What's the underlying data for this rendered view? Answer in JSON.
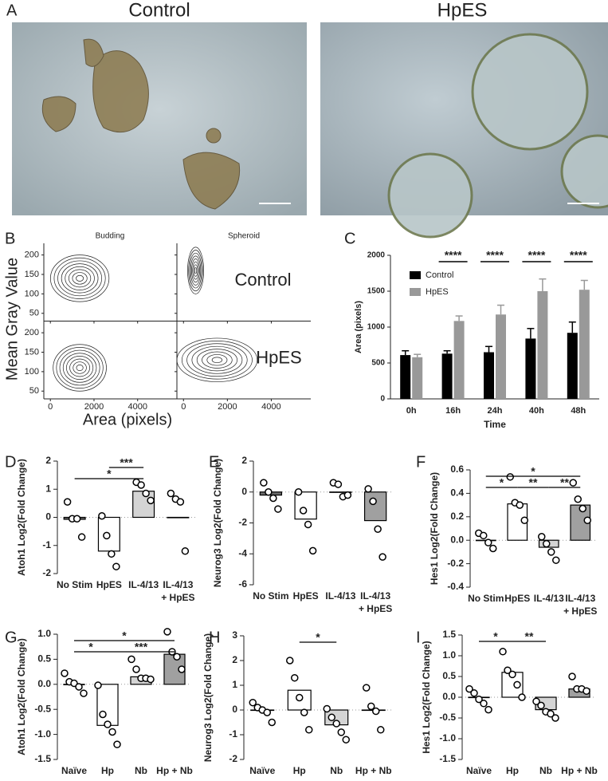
{
  "figure_a": {
    "panel": "A",
    "images": [
      {
        "title": "Control"
      },
      {
        "title": "HpES"
      }
    ]
  },
  "chart_data": [
    {
      "type": "contour",
      "panel": "B",
      "facets": [
        "Budding",
        "Spheroid"
      ],
      "rows": [
        "Control",
        "HpES"
      ],
      "xlabel": "Area (pixels)",
      "ylabel": "Mean Gray Value",
      "xlim": [
        -300,
        5800
      ],
      "xticks": [
        0,
        2000,
        4000
      ],
      "ylim": [
        30,
        230
      ],
      "yticks": [
        50,
        100,
        150,
        200
      ]
    },
    {
      "type": "bar",
      "panel": "C",
      "categories": [
        "0h",
        "16h",
        "24h",
        "40h",
        "48h"
      ],
      "xlabel": "Time",
      "ylabel": "Area (pixels)",
      "ylim": [
        0,
        2000
      ],
      "yticks": [
        0,
        500,
        1000,
        1500,
        2000
      ],
      "series": [
        {
          "name": "Control",
          "color": "#000000",
          "values": [
            610,
            630,
            650,
            840,
            920
          ],
          "errors": [
            60,
            40,
            80,
            140,
            150
          ]
        },
        {
          "name": "HpES",
          "color": "#999999",
          "values": [
            580,
            1085,
            1175,
            1500,
            1520
          ],
          "errors": [
            40,
            70,
            130,
            170,
            130
          ]
        }
      ],
      "significance": [
        null,
        "****",
        "****",
        "****",
        "****"
      ]
    },
    {
      "type": "bar_dot",
      "panel": "D",
      "ylabel": "Atoh1 Log2(Fold Change)",
      "categories": [
        [
          "No Stim"
        ],
        [
          "HpES"
        ],
        [
          "IL-4/13"
        ],
        [
          "IL-4/13",
          "+ HpES"
        ]
      ],
      "colors": [
        "#6b6b6b",
        "#ffffff",
        "#d4d4d4",
        "#a0a0a0"
      ],
      "values": [
        -0.07,
        -1.2,
        0.93,
        0.0
      ],
      "points": [
        [
          0.55,
          -0.05,
          -0.05,
          -0.7
        ],
        [
          0.05,
          -0.65,
          -1.3,
          -1.75
        ],
        [
          1.25,
          1.15,
          0.85,
          0.6
        ],
        [
          0.85,
          0.65,
          0.55,
          -1.2
        ]
      ],
      "ylim": [
        -2,
        2
      ],
      "yticks": [
        -2,
        -1,
        0,
        1,
        2
      ],
      "brackets": [
        {
          "from": 1,
          "to": 2,
          "label": "***"
        },
        {
          "from": 0,
          "to": 2,
          "label": "*"
        }
      ]
    },
    {
      "type": "bar_dot",
      "panel": "E",
      "ylabel": "Neurog3 Log2(Fold Change)",
      "categories": [
        [
          "No Stim"
        ],
        [
          "HpES"
        ],
        [
          "IL-4/13"
        ],
        [
          "IL-4/13",
          "+ HpES"
        ]
      ],
      "colors": [
        "#6b6b6b",
        "#ffffff",
        "#d4d4d4",
        "#a0a0a0"
      ],
      "values": [
        -0.2,
        -1.75,
        -0.02,
        -1.85
      ],
      "points": [
        [
          0.6,
          0,
          -0.4,
          -1.1
        ],
        [
          0,
          -1.2,
          -2.1,
          -3.8
        ],
        [
          0.6,
          0.5,
          -0.3,
          -0.2
        ],
        [
          0.2,
          -0.6,
          -2.4,
          -4.2
        ]
      ],
      "ylim": [
        -6,
        2
      ],
      "yticks": [
        -6,
        -4,
        -2,
        0,
        2
      ],
      "brackets": []
    },
    {
      "type": "bar_dot",
      "panel": "F",
      "ylabel": "Hes1 Log2(Fold Change)",
      "categories": [
        [
          "No Stim"
        ],
        [
          "HpES"
        ],
        [
          "IL-4/13"
        ],
        [
          "IL-4/13",
          "+ HpES"
        ]
      ],
      "colors": [
        "#6b6b6b",
        "#ffffff",
        "#d4d4d4",
        "#a0a0a0"
      ],
      "values": [
        0.0,
        0.31,
        -0.06,
        0.3
      ],
      "points": [
        [
          0.06,
          0.04,
          -0.02,
          -0.07
        ],
        [
          0.54,
          0.32,
          0.3,
          0.17
        ],
        [
          0.03,
          -0.03,
          -0.1,
          -0.17
        ],
        [
          0.49,
          0.35,
          0.27,
          0.17
        ]
      ],
      "ylim": [
        -0.4,
        0.6
      ],
      "yticks": [
        -0.4,
        -0.2,
        {
          "value": 0,
          "label": "0.0"
        },
        0.2,
        0.4,
        0.6
      ],
      "brackets": [
        {
          "from": 0,
          "to": 3,
          "label": "*"
        },
        {
          "from": 0,
          "to": 1,
          "label": "*"
        },
        {
          "from": 1,
          "to": 2,
          "label": "**"
        },
        {
          "from": 2,
          "to": 3,
          "label": "**"
        }
      ]
    },
    {
      "type": "bar_dot",
      "panel": "G",
      "ylabel": "Atoh1 Log2(Fold Change)",
      "categories": [
        [
          "Naïve"
        ],
        [
          "Hp"
        ],
        [
          "Nb"
        ],
        [
          "Hp + Nb"
        ]
      ],
      "colors": [
        "#6b6b6b",
        "#ffffff",
        "#d4d4d4",
        "#a0a0a0"
      ],
      "values": [
        0.0,
        -0.82,
        0.15,
        0.6
      ],
      "points": [
        [
          0.22,
          0.05,
          0.02,
          -0.05,
          -0.18
        ],
        [
          -0.02,
          -0.6,
          -0.8,
          -0.95,
          -1.2
        ],
        [
          0.5,
          0.3,
          0.12,
          0.12,
          0.1
        ],
        [
          1.05,
          0.65,
          0.55,
          0.3
        ]
      ],
      "ylim": [
        -1.5,
        1.0
      ],
      "yticks": [
        -1.5,
        {
          "value": -1,
          "label": "-1.0"
        },
        -0.5,
        {
          "value": 0,
          "label": "0.0"
        },
        0.5,
        {
          "value": 1,
          "label": "1.0"
        }
      ],
      "brackets": [
        {
          "from": 0,
          "to": 3,
          "label": "*"
        },
        {
          "from": 1,
          "to": 3,
          "label": "***"
        },
        {
          "from": 0,
          "to": 1,
          "label": "*"
        }
      ]
    },
    {
      "type": "bar_dot",
      "panel": "H",
      "ylabel": "Neurog3 Log2(Fold Change)",
      "categories": [
        [
          "Naïve"
        ],
        [
          "Hp"
        ],
        [
          "Nb"
        ],
        [
          "Hp + Nb"
        ]
      ],
      "colors": [
        "#6b6b6b",
        "#ffffff",
        "#d4d4d4",
        "#a0a0a0"
      ],
      "values": [
        0.0,
        0.8,
        -0.6,
        0.0
      ],
      "points": [
        [
          0.3,
          0.1,
          0,
          -0.1,
          -0.5
        ],
        [
          2.0,
          1.3,
          0.5,
          -0.1,
          -0.8
        ],
        [
          0.05,
          -0.3,
          -0.55,
          -0.9,
          -1.2
        ],
        [
          0.9,
          0.15,
          -0.05,
          -0.8
        ]
      ],
      "ylim": [
        -2,
        3
      ],
      "yticks": [
        -2,
        -1,
        0,
        1,
        2,
        3
      ],
      "brackets": [
        {
          "from": 1,
          "to": 2,
          "label": "*"
        }
      ]
    },
    {
      "type": "bar_dot",
      "panel": "I",
      "ylabel": "Hes1 Log2(Fold Change)",
      "categories": [
        [
          "Naïve"
        ],
        [
          "Hp"
        ],
        [
          "Nb"
        ],
        [
          "Hp + Nb"
        ]
      ],
      "colors": [
        "#6b6b6b",
        "#ffffff",
        "#d4d4d4",
        "#a0a0a0"
      ],
      "values": [
        0.0,
        0.6,
        -0.3,
        0.2
      ],
      "points": [
        [
          0.2,
          0.1,
          -0.05,
          -0.15,
          -0.3
        ],
        [
          1.1,
          0.65,
          0.55,
          0.3,
          0.0
        ],
        [
          -0.1,
          -0.2,
          -0.35,
          -0.4,
          -0.5
        ],
        [
          0.5,
          0.2,
          0.2,
          0.15
        ]
      ],
      "ylim": [
        -1.5,
        1.5
      ],
      "yticks": [
        -1.5,
        {
          "value": -1,
          "label": "-1.0"
        },
        -0.5,
        {
          "value": 0,
          "label": "0.0"
        },
        0.5,
        {
          "value": 1,
          "label": "1.0"
        },
        1.5
      ],
      "brackets": [
        {
          "from": 0,
          "to": 1,
          "label": "*"
        },
        {
          "from": 1,
          "to": 2,
          "label": "**"
        }
      ]
    }
  ]
}
